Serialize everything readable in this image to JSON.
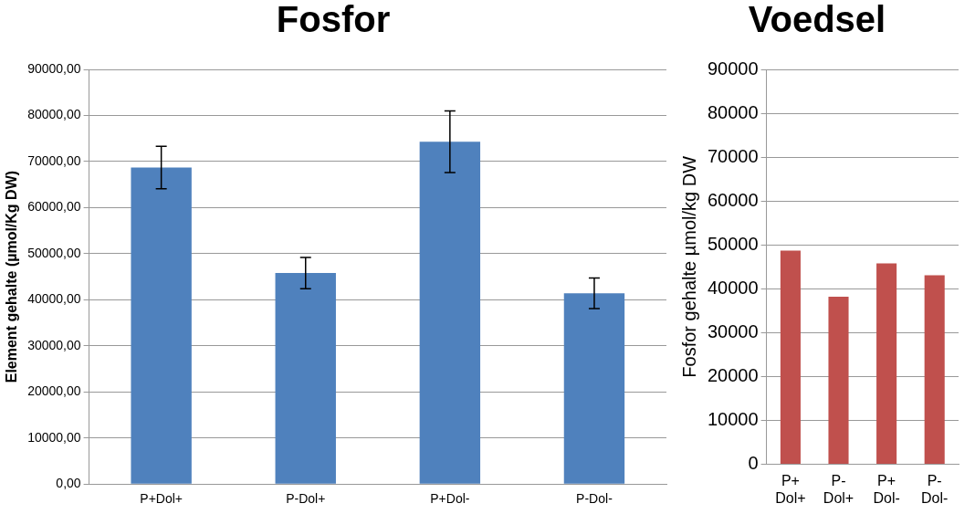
{
  "chart_data": [
    {
      "type": "bar",
      "title": "Fosfor",
      "ylabel": "Element gehalte (µmol/Kg DW)",
      "categories": [
        "P+Dol+",
        "P-Dol+",
        "P+Dol-",
        "P-Dol-"
      ],
      "values": [
        68700,
        45800,
        74300,
        41400
      ],
      "color": "#4f81bd",
      "errors": [
        4600,
        3400,
        6700,
        3300
      ],
      "ylim": [
        0,
        90000
      ],
      "yticks": [
        {
          "value": 0,
          "label": "0,00"
        },
        {
          "value": 10000,
          "label": "10000,00"
        },
        {
          "value": 20000,
          "label": "20000,00"
        },
        {
          "value": 30000,
          "label": "30000,00"
        },
        {
          "value": 40000,
          "label": "40000,00"
        },
        {
          "value": 50000,
          "label": "50000,00"
        },
        {
          "value": 60000,
          "label": "60000,00"
        },
        {
          "value": 70000,
          "label": "70000,00"
        },
        {
          "value": 80000,
          "label": "80000,00"
        },
        {
          "value": 90000,
          "label": "90000,00"
        }
      ],
      "grid": "y"
    },
    {
      "type": "bar",
      "title": "Voedsel",
      "ylabel": "Fosfor gehalte µmol/kg DW",
      "categories": [
        "P+ Dol+",
        "P- Dol+",
        "P+ Dol-",
        "P- Dol-"
      ],
      "values": [
        48700,
        38200,
        45800,
        43100
      ],
      "color": "#c0504d",
      "ylim": [
        0,
        90000
      ],
      "yticks": [
        0,
        10000,
        20000,
        30000,
        40000,
        50000,
        60000,
        70000,
        80000,
        90000
      ],
      "grid": "y"
    }
  ]
}
